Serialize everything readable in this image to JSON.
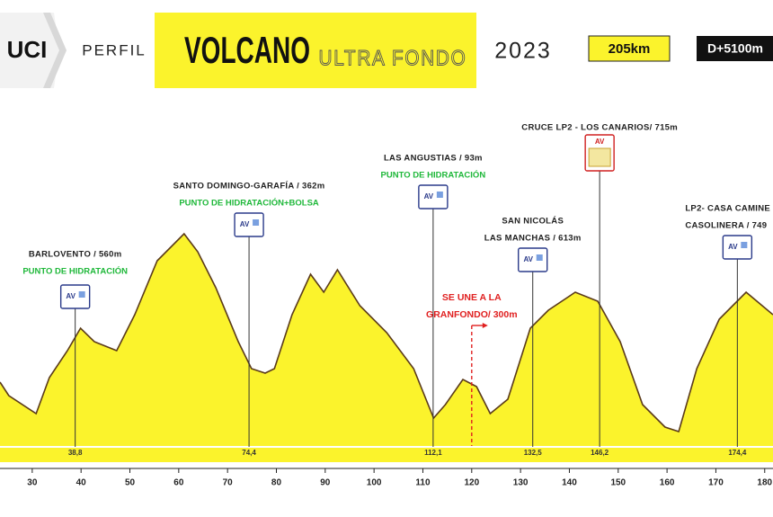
{
  "header": {
    "logo": "UCI",
    "label": "PERFIL",
    "title": "VOLCANO",
    "subtitle": "ULTRA FONDO",
    "year": "2023",
    "distance": "205km",
    "climb": "D+5100m"
  },
  "chart_data": {
    "type": "area",
    "color": "#fbf32c",
    "line_color": "#5a3a1a",
    "x": [
      23.4,
      25.2,
      30.8,
      33.5,
      37.2,
      39.9,
      42.7,
      47.3,
      51,
      55.6,
      61.1,
      63.9,
      67.6,
      72.2,
      74.9,
      77.7,
      79.6,
      83.2,
      87,
      89.7,
      92.5,
      97.1,
      102.6,
      108.1,
      112.2,
      114.6,
      118.2,
      121,
      123.8,
      127.4,
      132,
      135.7,
      141.2,
      145.8,
      150.4,
      155,
      159.6,
      162.4,
      166.1,
      170.7,
      176.2,
      181.7
    ],
    "values": [
      260,
      185,
      85,
      285,
      435,
      560,
      485,
      435,
      635,
      935,
      1085,
      985,
      785,
      485,
      335,
      310,
      335,
      635,
      860,
      760,
      885,
      685,
      535,
      335,
      60,
      135,
      275,
      235,
      85,
      165,
      560,
      660,
      760,
      710,
      485,
      135,
      10,
      -15,
      335,
      610,
      760,
      635
    ],
    "xlim": [
      23.4,
      181.7
    ],
    "ylim": [
      -65,
      1835
    ],
    "xticks": [
      30,
      40,
      50,
      60,
      70,
      80,
      90,
      100,
      110,
      120,
      130,
      140,
      150,
      160,
      170,
      180
    ],
    "annotations": [
      {
        "lines": [
          "BARLOVENTO / 560m"
        ],
        "note": "PUNTO DE HIDRATACIÓN",
        "icon": "AV",
        "x": {
          "value": 38.8,
          "label": "38,8"
        }
      },
      {
        "lines": [
          "SANTO DOMINGO-GARAFÍA / 362m"
        ],
        "note": "PUNTO DE HIDRATACIÓN+BOLSA",
        "icon": "AV",
        "x": {
          "value": 74.4,
          "label": "74,4"
        }
      },
      {
        "lines": [
          "LAS ANGUSTIAS / 93m"
        ],
        "note": "PUNTO DE HIDRATACIÓN",
        "icon": "AV",
        "x": {
          "value": 112.1,
          "label": "112,1"
        }
      },
      {
        "lines": [
          "SAN NICOLÁS",
          "LAS MANCHAS / 613m"
        ],
        "icon": "AV",
        "x": {
          "value": 132.5,
          "label": "132,5"
        }
      },
      {
        "lines": [
          "CRUCE LP2 - LOS CANARIOS/ 715m"
        ],
        "icon": "AV",
        "x": {
          "value": 146.2,
          "label": "146,2"
        }
      },
      {
        "lines": [
          "LP2- CASA CAMINE",
          "CASOLINERA / 749"
        ],
        "icon": "AV",
        "x": {
          "value": 174.4,
          "label": "174,4"
        }
      }
    ],
    "join": {
      "lines": [
        "SE UNE A LA",
        "GRANFONDO/ 300m"
      ],
      "x": 120
    }
  }
}
